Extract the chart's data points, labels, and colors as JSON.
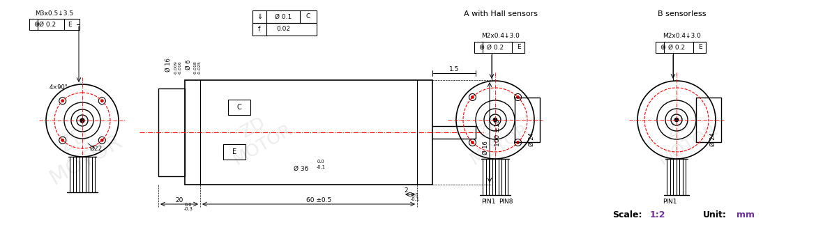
{
  "bg_color": "#ffffff",
  "watermark_color": "#cccccc",
  "line_color": "#000000",
  "red_dash_color": "#ff0000",
  "scale_text": "Scale:",
  "scale_value": "1:2",
  "unit_text": "Unit:",
  "unit_value": "mm",
  "scale_color": "#000000",
  "scale_value_color": "#7030a0",
  "unit_color": "#000000",
  "unit_value_color": "#7030a0",
  "label_A": "A with Hall sensors",
  "label_B": "B sensorless",
  "figsize": [
    11.8,
    3.33
  ],
  "dpi": 100
}
